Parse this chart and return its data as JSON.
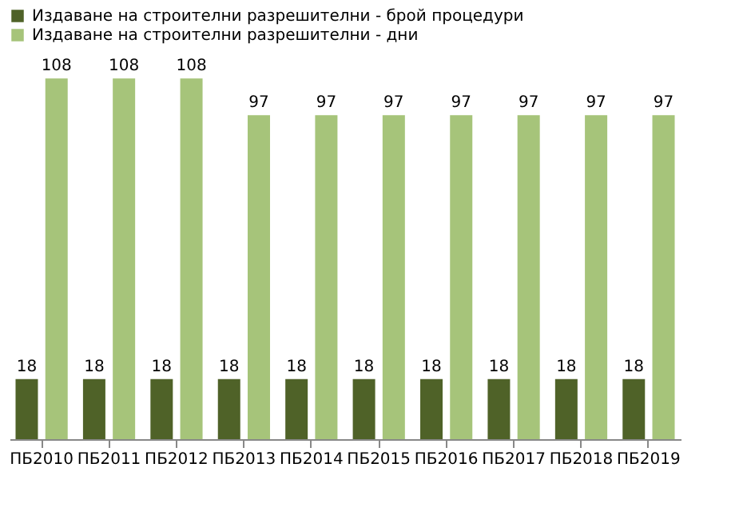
{
  "chart_data": {
    "type": "bar",
    "categories": [
      "ПБ2010",
      "ПБ2011",
      "ПБ2012",
      "ПБ2013",
      "ПБ2014",
      "ПБ2015",
      "ПБ2016",
      "ПБ2017",
      "ПБ2018",
      "ПБ2019"
    ],
    "series": [
      {
        "name": "Издаване на строителни разрешителни - брой процедури",
        "color": "#4f6228",
        "values": [
          18,
          18,
          18,
          18,
          18,
          18,
          18,
          18,
          18,
          18
        ]
      },
      {
        "name": "Издаване на строителни разрешителни - дни",
        "color": "#a6c47a",
        "values": [
          108,
          108,
          108,
          97,
          97,
          97,
          97,
          97,
          97,
          97
        ]
      }
    ],
    "data_labels": true,
    "legend": "top",
    "grid": false
  }
}
